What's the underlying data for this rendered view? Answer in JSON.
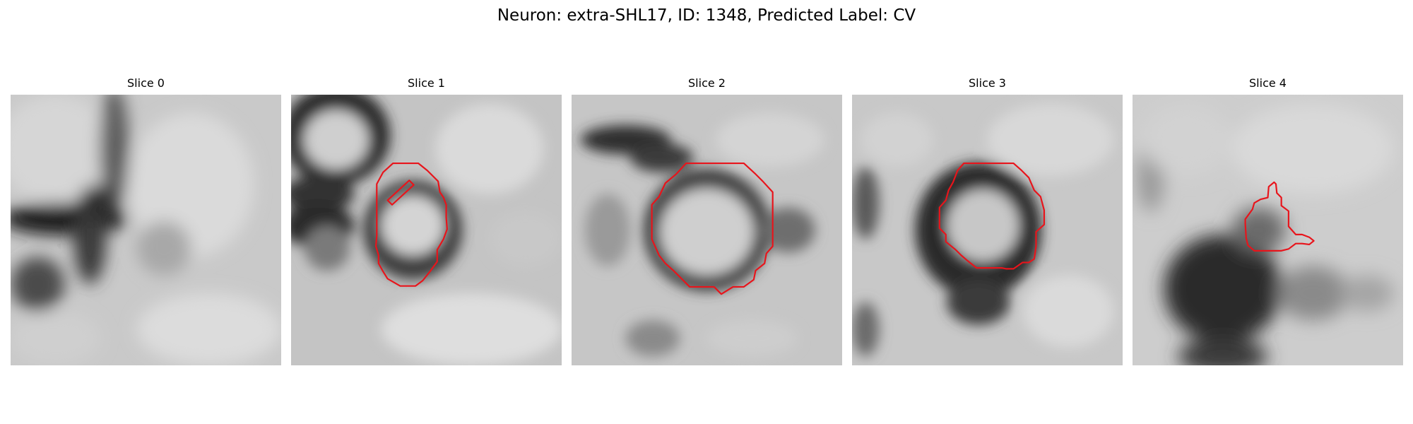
{
  "figure": {
    "title": "Neuron: extra-SHL17, ID: 1348, Predicted Label: CV",
    "colormap": "gray",
    "contour_color": "#e8141b"
  },
  "slices": [
    {
      "title": "Slice 0",
      "has_contour": false
    },
    {
      "title": "Slice 1",
      "has_contour": true
    },
    {
      "title": "Slice 2",
      "has_contour": true
    },
    {
      "title": "Slice 3",
      "has_contour": true
    },
    {
      "title": "Slice 4",
      "has_contour": true
    }
  ]
}
